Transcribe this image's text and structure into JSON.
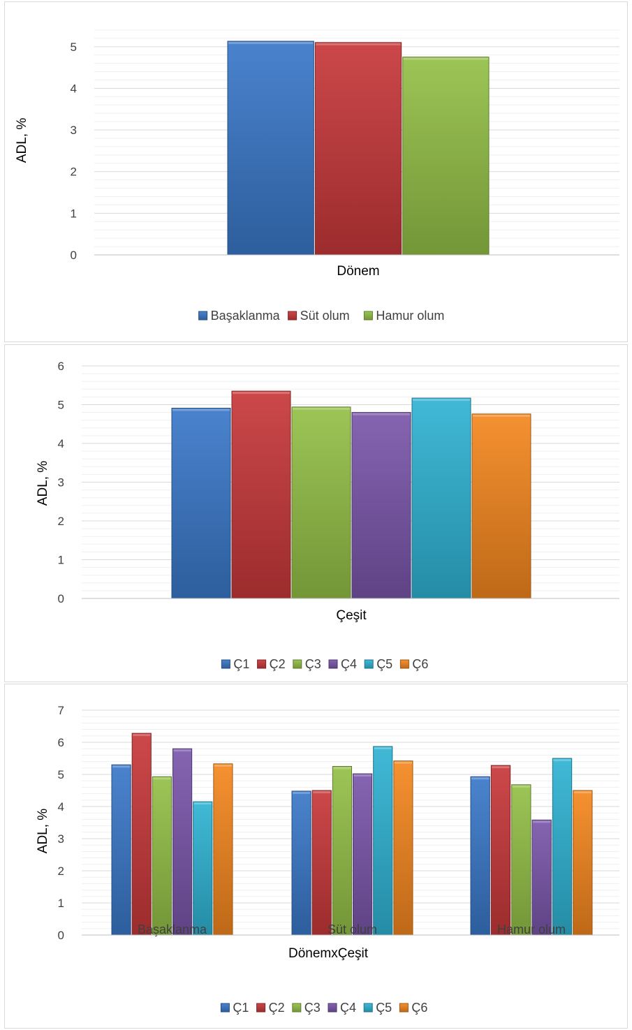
{
  "colors": {
    "blue": "#3a78c9",
    "red": "#c8383a",
    "green": "#93c047",
    "purple": "#7a56aa",
    "cyan": "#2fb3d3",
    "orange": "#f4871f"
  },
  "chart_data": [
    {
      "type": "bar",
      "categories": [
        "Dönem"
      ],
      "xlabel": "Dönem",
      "ylabel": "ADL, %",
      "ylim": [
        0,
        5.5
      ],
      "yticks": [
        0,
        1,
        2,
        3,
        4,
        5
      ],
      "grid": true,
      "legend": "bottom",
      "series": [
        {
          "name": "Başaklanma",
          "color": "blue",
          "values": [
            5.13
          ]
        },
        {
          "name": "Süt olum",
          "color": "red",
          "values": [
            5.1
          ]
        },
        {
          "name": "Hamur olum",
          "color": "green",
          "values": [
            4.75
          ]
        }
      ]
    },
    {
      "type": "bar",
      "categories": [
        "Çeşit"
      ],
      "xlabel": "Çeşit",
      "ylabel": "ADL, %",
      "ylim": [
        0,
        6
      ],
      "yticks": [
        0,
        1,
        2,
        3,
        4,
        5,
        6
      ],
      "grid": true,
      "legend": "bottom",
      "series": [
        {
          "name": "Ç1",
          "color": "blue",
          "values": [
            4.91
          ]
        },
        {
          "name": "Ç2",
          "color": "red",
          "values": [
            5.35
          ]
        },
        {
          "name": "Ç3",
          "color": "green",
          "values": [
            4.94
          ]
        },
        {
          "name": "Ç4",
          "color": "purple",
          "values": [
            4.8
          ]
        },
        {
          "name": "Ç5",
          "color": "cyan",
          "values": [
            5.17
          ]
        },
        {
          "name": "Ç6",
          "color": "orange",
          "values": [
            4.76
          ]
        }
      ]
    },
    {
      "type": "bar",
      "categories": [
        "Başaklanma",
        "Süt olum",
        "Hamur olum"
      ],
      "xlabel": "DönemxÇeşit",
      "ylabel": "ADL, %",
      "ylim": [
        0,
        7
      ],
      "yticks": [
        0,
        1,
        2,
        3,
        4,
        5,
        6,
        7
      ],
      "grid": true,
      "legend": "bottom",
      "series": [
        {
          "name": "Ç1",
          "color": "blue",
          "values": [
            5.3,
            4.48,
            4.93
          ]
        },
        {
          "name": "Ç2",
          "color": "red",
          "values": [
            6.28,
            4.5,
            5.28
          ]
        },
        {
          "name": "Ç3",
          "color": "green",
          "values": [
            4.93,
            5.25,
            4.68
          ]
        },
        {
          "name": "Ç4",
          "color": "purple",
          "values": [
            5.8,
            5.02,
            3.58
          ]
        },
        {
          "name": "Ç5",
          "color": "cyan",
          "values": [
            4.15,
            5.87,
            5.5
          ]
        },
        {
          "name": "Ç6",
          "color": "orange",
          "values": [
            5.33,
            5.42,
            4.5
          ]
        }
      ]
    }
  ]
}
